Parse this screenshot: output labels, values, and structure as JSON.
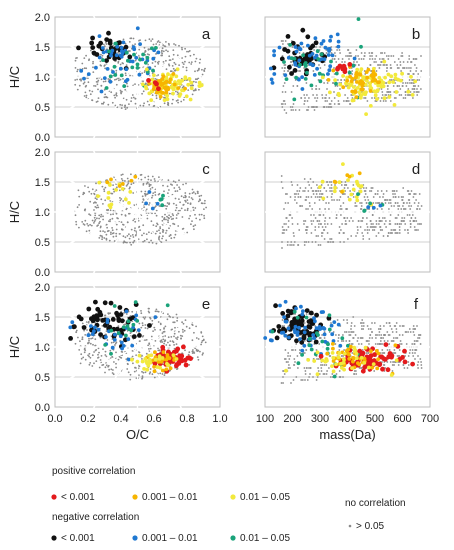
{
  "chart_data": {
    "type": "scatter",
    "description_free": true,
    "shared": {
      "ylabel": "H/C",
      "ylim": [
        0.0,
        2.0
      ],
      "yticks": [
        "0.0",
        "0.5",
        "1.0",
        "1.5",
        "2.0"
      ],
      "grid": "horizontal",
      "left_xlabel": "O/C",
      "left_xlim": [
        0.0,
        1.0
      ],
      "left_xticks": [
        "0.0",
        "0.2",
        "0.4",
        "0.6",
        "0.8",
        "1.0"
      ],
      "right_xlabel": "mass(Da)",
      "right_xlim": [
        100,
        700
      ],
      "right_xticks": [
        "100",
        "200",
        "300",
        "400",
        "500",
        "600",
        "700"
      ]
    },
    "panels": [
      {
        "label": "a",
        "x_axis": "O/C",
        "highlights": [
          {
            "cls": "neg_001",
            "x": 0.35,
            "y": 1.45,
            "sx": 0.08,
            "sy": 0.12,
            "n": 35
          },
          {
            "cls": "neg_01",
            "x": 0.4,
            "y": 1.3,
            "sx": 0.12,
            "sy": 0.2,
            "n": 45
          },
          {
            "cls": "neg_05",
            "x": 0.45,
            "y": 1.25,
            "sx": 0.12,
            "sy": 0.25,
            "n": 25
          },
          {
            "cls": "pos_05",
            "x": 0.7,
            "y": 0.85,
            "sx": 0.08,
            "sy": 0.12,
            "n": 70
          },
          {
            "cls": "pos_01",
            "x": 0.66,
            "y": 0.82,
            "sx": 0.05,
            "sy": 0.08,
            "n": 35
          },
          {
            "cls": "pos_001",
            "x": 0.62,
            "y": 0.9,
            "sx": 0.03,
            "sy": 0.05,
            "n": 4
          }
        ]
      },
      {
        "label": "b",
        "x_axis": "mass",
        "highlights": [
          {
            "cls": "neg_001",
            "x": 230,
            "y": 1.35,
            "sx": 45,
            "sy": 0.15,
            "n": 45
          },
          {
            "cls": "neg_01",
            "x": 260,
            "y": 1.3,
            "sx": 70,
            "sy": 0.2,
            "n": 55
          },
          {
            "cls": "neg_05",
            "x": 280,
            "y": 1.2,
            "sx": 80,
            "sy": 0.25,
            "n": 30
          },
          {
            "cls": "pos_05",
            "x": 480,
            "y": 0.85,
            "sx": 75,
            "sy": 0.15,
            "n": 90
          },
          {
            "cls": "pos_01",
            "x": 450,
            "y": 0.95,
            "sx": 45,
            "sy": 0.12,
            "n": 40
          },
          {
            "cls": "pos_001",
            "x": 390,
            "y": 1.15,
            "sx": 20,
            "sy": 0.06,
            "n": 10
          }
        ]
      },
      {
        "label": "c",
        "x_axis": "O/C",
        "highlights": [
          {
            "cls": "pos_05",
            "x": 0.35,
            "y": 1.35,
            "sx": 0.06,
            "sy": 0.12,
            "n": 15
          },
          {
            "cls": "pos_01",
            "x": 0.4,
            "y": 1.4,
            "sx": 0.05,
            "sy": 0.1,
            "n": 6
          },
          {
            "cls": "neg_01",
            "x": 0.6,
            "y": 1.2,
            "sx": 0.05,
            "sy": 0.08,
            "n": 4
          },
          {
            "cls": "neg_05",
            "x": 0.62,
            "y": 1.15,
            "sx": 0.05,
            "sy": 0.08,
            "n": 4
          }
        ]
      },
      {
        "label": "d",
        "x_axis": "mass",
        "highlights": [
          {
            "cls": "pos_05",
            "x": 410,
            "y": 1.4,
            "sx": 40,
            "sy": 0.15,
            "n": 22
          },
          {
            "cls": "pos_01",
            "x": 400,
            "y": 1.45,
            "sx": 30,
            "sy": 0.1,
            "n": 6
          },
          {
            "cls": "neg_05",
            "x": 520,
            "y": 1.1,
            "sx": 40,
            "sy": 0.1,
            "n": 5
          },
          {
            "cls": "neg_01",
            "x": 480,
            "y": 1.05,
            "sx": 30,
            "sy": 0.1,
            "n": 3
          }
        ]
      },
      {
        "label": "e",
        "x_axis": "O/C",
        "highlights": [
          {
            "cls": "neg_001",
            "x": 0.33,
            "y": 1.4,
            "sx": 0.09,
            "sy": 0.15,
            "n": 60
          },
          {
            "cls": "neg_01",
            "x": 0.38,
            "y": 1.3,
            "sx": 0.1,
            "sy": 0.2,
            "n": 30
          },
          {
            "cls": "neg_05",
            "x": 0.42,
            "y": 1.25,
            "sx": 0.1,
            "sy": 0.2,
            "n": 15
          },
          {
            "cls": "pos_001",
            "x": 0.7,
            "y": 0.82,
            "sx": 0.06,
            "sy": 0.08,
            "n": 45
          },
          {
            "cls": "pos_01",
            "x": 0.64,
            "y": 0.78,
            "sx": 0.05,
            "sy": 0.08,
            "n": 25
          },
          {
            "cls": "pos_05",
            "x": 0.6,
            "y": 0.75,
            "sx": 0.06,
            "sy": 0.08,
            "n": 25
          }
        ]
      },
      {
        "label": "f",
        "x_axis": "mass",
        "highlights": [
          {
            "cls": "neg_001",
            "x": 220,
            "y": 1.35,
            "sx": 45,
            "sy": 0.15,
            "n": 70
          },
          {
            "cls": "neg_01",
            "x": 260,
            "y": 1.3,
            "sx": 70,
            "sy": 0.2,
            "n": 55
          },
          {
            "cls": "neg_05",
            "x": 290,
            "y": 1.15,
            "sx": 80,
            "sy": 0.25,
            "n": 25
          },
          {
            "cls": "pos_001",
            "x": 480,
            "y": 0.78,
            "sx": 70,
            "sy": 0.1,
            "n": 70
          },
          {
            "cls": "pos_01",
            "x": 420,
            "y": 0.85,
            "sx": 55,
            "sy": 0.1,
            "n": 40
          },
          {
            "cls": "pos_05",
            "x": 390,
            "y": 0.8,
            "sx": 70,
            "sy": 0.12,
            "n": 35
          }
        ]
      }
    ],
    "legend": {
      "placement": "bottom",
      "positive_heading": "positive correlation",
      "negative_heading": "negative correlation",
      "none_heading": "no correlation",
      "positive": [
        {
          "cls": "pos_001",
          "label": "< 0.001",
          "color": "#e31a1c"
        },
        {
          "cls": "pos_01",
          "label": "0.001 – 0.01",
          "color": "#f7b500"
        },
        {
          "cls": "pos_05",
          "label": "0.01 – 0.05",
          "color": "#f2e93c"
        }
      ],
      "negative": [
        {
          "cls": "neg_001",
          "label": "< 0.001",
          "color": "#111111"
        },
        {
          "cls": "neg_01",
          "label": "0.001 – 0.01",
          "color": "#1f78d1"
        },
        {
          "cls": "neg_05",
          "label": "0.01 – 0.05",
          "color": "#1aa37a"
        }
      ],
      "none": {
        "cls": "none",
        "label": "> 0.05",
        "color": "#8a8a8a"
      }
    }
  }
}
